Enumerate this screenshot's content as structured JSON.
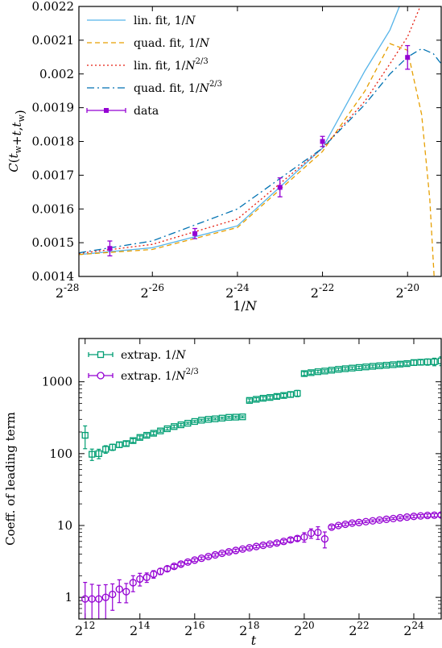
{
  "chart_data": [
    {
      "type": "line",
      "xlabel": "1/N",
      "ylabel": "C(t_w+t, t_w)",
      "x_scale": "log2",
      "xlim": [
        4.5e-09,
        1.65e-06
      ],
      "ylim": [
        0.0014,
        0.0022
      ],
      "x_ticks": [
        {
          "value": 3.7253e-09,
          "base": "2",
          "exp": "-28"
        },
        {
          "value": 1.4901e-08,
          "base": "2",
          "exp": "-26"
        },
        {
          "value": 5.9605e-08,
          "base": "2",
          "exp": "-24"
        },
        {
          "value": 2.3842e-07,
          "base": "2",
          "exp": "-22"
        },
        {
          "value": 9.5367e-07,
          "base": "2",
          "exp": "-20"
        }
      ],
      "y_ticks": [
        {
          "value": 0.0014,
          "label": "0.0014"
        },
        {
          "value": 0.0015,
          "label": "0.0015"
        },
        {
          "value": 0.0016,
          "label": "0.0016"
        },
        {
          "value": 0.0017,
          "label": "0.0017"
        },
        {
          "value": 0.0018,
          "label": "0.0018"
        },
        {
          "value": 0.0019,
          "label": "0.0019"
        },
        {
          "value": 0.002,
          "label": "0.002"
        },
        {
          "value": 0.0021,
          "label": "0.0021"
        },
        {
          "value": 0.0022,
          "label": "0.0022"
        }
      ],
      "legend_position": "top-left",
      "series": [
        {
          "name": "lin. fit, 1/N",
          "kind": "line",
          "style": "solid",
          "color": "#56b4e9",
          "x": [
            4.5e-09,
            1.49e-08,
            5.96e-08,
            2.38e-07,
            4.77e-07,
            7.15e-07,
            9.54e-07
          ],
          "y": [
            0.001465,
            0.001485,
            0.00155,
            0.00178,
            0.00201,
            0.00213,
            0.00226
          ]
        },
        {
          "name": "quad. fit, 1/N",
          "kind": "line",
          "style": "dashed",
          "color": "#e69f00",
          "x": [
            4.5e-09,
            1.49e-08,
            5.96e-08,
            2.38e-07,
            4.77e-07,
            7.15e-07,
            9.54e-07,
            1.2e-06,
            1.37e-06,
            1.47e-06
          ],
          "y": [
            0.001465,
            0.00148,
            0.001545,
            0.00177,
            0.00195,
            0.00209,
            0.00207,
            0.00188,
            0.00163,
            0.0014
          ]
        },
        {
          "name": "lin. fit, 1/N^2/3",
          "kind": "line",
          "style": "dotted",
          "color": "#e51e10",
          "x": [
            4.5e-09,
            1.49e-08,
            5.96e-08,
            2.38e-07,
            4.77e-07,
            7.15e-07,
            9.54e-07,
            1.2e-06
          ],
          "y": [
            0.001468,
            0.001495,
            0.00157,
            0.00178,
            0.00192,
            0.00203,
            0.00211,
            0.00221
          ]
        },
        {
          "name": "quad. fit, 1/N^2/3",
          "kind": "line",
          "style": "dash-dot",
          "color": "#0072b2",
          "x": [
            4.5e-09,
            1.49e-08,
            5.96e-08,
            2.38e-07,
            4.77e-07,
            7.15e-07,
            9.54e-07,
            1.2e-06,
            1.45e-06,
            1.65e-06
          ],
          "y": [
            0.00147,
            0.001505,
            0.0016,
            0.00178,
            0.00191,
            0.002,
            0.00205,
            0.002075,
            0.00206,
            0.00203
          ]
        },
        {
          "name": "data",
          "kind": "points",
          "color": "#9400d3",
          "x": [
            3.7253e-09,
            7.4506e-09,
            2.9802e-08,
            1.1921e-07,
            2.3842e-07,
            9.5367e-07
          ],
          "y": [
            0.001474,
            0.001483,
            0.001527,
            0.001664,
            0.0018,
            0.002049
          ],
          "err": [
            5e-06,
            2.2e-05,
            1.5e-05,
            2.8e-05,
            1.5e-05,
            3.5e-05
          ]
        }
      ]
    },
    {
      "type": "scatter",
      "xlabel": "t",
      "ylabel": "Coeff. of leading term",
      "x_scale": "log2",
      "y_scale": "log10",
      "xlim": [
        3500,
        33554432
      ],
      "ylim": [
        0.5,
        4000
      ],
      "x_ticks": [
        {
          "value": 4096,
          "base": "2",
          "exp": "12"
        },
        {
          "value": 16384,
          "base": "2",
          "exp": "14"
        },
        {
          "value": 65536,
          "base": "2",
          "exp": "16"
        },
        {
          "value": 262144,
          "base": "2",
          "exp": "18"
        },
        {
          "value": 1048576,
          "base": "2",
          "exp": "20"
        },
        {
          "value": 4194304,
          "base": "2",
          "exp": "22"
        },
        {
          "value": 16777216,
          "base": "2",
          "exp": "24"
        }
      ],
      "y_ticks": [
        {
          "value": 1,
          "label": "1"
        },
        {
          "value": 10,
          "label": "10"
        },
        {
          "value": 100,
          "label": "100"
        },
        {
          "value": 1000,
          "label": "1000"
        }
      ],
      "legend_position": "top-left",
      "series": [
        {
          "name": "extrap. 1/N",
          "marker": "square",
          "color": "#009e73",
          "x": [
            4096,
            4870,
            5790,
            6890,
            8192,
            9740,
            11590,
            13780,
            16384,
            19480,
            23170,
            27560,
            32768,
            38970,
            46340,
            55110,
            65536,
            77930,
            92680,
            110200,
            131072,
            155900,
            185400,
            220400,
            262144,
            311700,
            370700,
            440800,
            524288,
            623500,
            741500,
            881600,
            1048576,
            1247000,
            1483000,
            1763000,
            2097152,
            2494000,
            2966000,
            3527000,
            4194304,
            4988000,
            5932000,
            7054000,
            8388608,
            9976000,
            11860000,
            14110000,
            16777216,
            19950000,
            23730000,
            28220000,
            33554432
          ],
          "y": [
            180,
            98,
            100,
            115,
            123,
            133,
            138,
            152,
            168,
            180,
            192,
            207,
            222,
            238,
            252,
            265,
            280,
            292,
            300,
            305,
            312,
            320,
            322,
            325,
            550,
            570,
            590,
            605,
            625,
            645,
            665,
            690,
            1300,
            1340,
            1380,
            1410,
            1450,
            1490,
            1520,
            1550,
            1580,
            1610,
            1640,
            1670,
            1700,
            1730,
            1760,
            1790,
            1850,
            1870,
            1890,
            1900,
            1950
          ],
          "err_rel": [
            0.35,
            0.18,
            0.15,
            0.12,
            0.1,
            0.08,
            0.07,
            0.06,
            0.05,
            0.05,
            0.05,
            0.04,
            0.04,
            0.04,
            0.04,
            0.03,
            0.03,
            0.03,
            0.03,
            0.03,
            0.03,
            0.03,
            0.03,
            0.03,
            0.05,
            0.05,
            0.05,
            0.05,
            0.06,
            0.06,
            0.08,
            0.1,
            0.06,
            0.05,
            0.04,
            0.04,
            0.04,
            0.04,
            0.04,
            0.04,
            0.04,
            0.04,
            0.04,
            0.04,
            0.04,
            0.04,
            0.05,
            0.05,
            0.08,
            0.08,
            0.1,
            0.12,
            0.14
          ]
        },
        {
          "name": "extrap. 1/N^2/3",
          "marker": "circle",
          "color": "#9400d3",
          "x": [
            4096,
            4870,
            5790,
            6890,
            8192,
            9740,
            11590,
            13780,
            16384,
            19480,
            23170,
            27560,
            32768,
            38970,
            46340,
            55110,
            65536,
            77930,
            92680,
            110200,
            131072,
            155900,
            185400,
            220400,
            262144,
            311700,
            370700,
            440800,
            524288,
            623500,
            741500,
            881600,
            1048576,
            1247000,
            1483000,
            1763000,
            2097152,
            2494000,
            2966000,
            3527000,
            4194304,
            4988000,
            5932000,
            7054000,
            8388608,
            9976000,
            11860000,
            14110000,
            16777216,
            19950000,
            23730000,
            28220000,
            33554432
          ],
          "y": [
            0.95,
            0.95,
            0.95,
            1.0,
            1.1,
            1.3,
            1.2,
            1.6,
            1.8,
            1.9,
            2.1,
            2.3,
            2.5,
            2.7,
            2.9,
            3.1,
            3.3,
            3.5,
            3.7,
            3.9,
            4.1,
            4.3,
            4.5,
            4.7,
            4.9,
            5.1,
            5.3,
            5.5,
            5.7,
            6.0,
            6.3,
            6.6,
            6.9,
            7.8,
            8.0,
            6.5,
            9.5,
            10.0,
            10.4,
            10.8,
            11.0,
            11.3,
            11.6,
            11.9,
            12.2,
            12.5,
            12.8,
            13.1,
            13.4,
            13.6,
            13.8,
            13.9,
            14.0
          ],
          "err_rel": [
            0.7,
            0.6,
            0.55,
            0.5,
            0.4,
            0.35,
            0.3,
            0.25,
            0.2,
            0.15,
            0.12,
            0.1,
            0.08,
            0.06,
            0.05,
            0.05,
            0.04,
            0.04,
            0.04,
            0.04,
            0.04,
            0.04,
            0.04,
            0.04,
            0.04,
            0.04,
            0.04,
            0.04,
            0.05,
            0.05,
            0.06,
            0.07,
            0.15,
            0.15,
            0.2,
            0.25,
            0.05,
            0.04,
            0.04,
            0.04,
            0.03,
            0.03,
            0.03,
            0.03,
            0.03,
            0.03,
            0.03,
            0.03,
            0.04,
            0.04,
            0.05,
            0.05,
            0.06
          ]
        }
      ]
    }
  ]
}
